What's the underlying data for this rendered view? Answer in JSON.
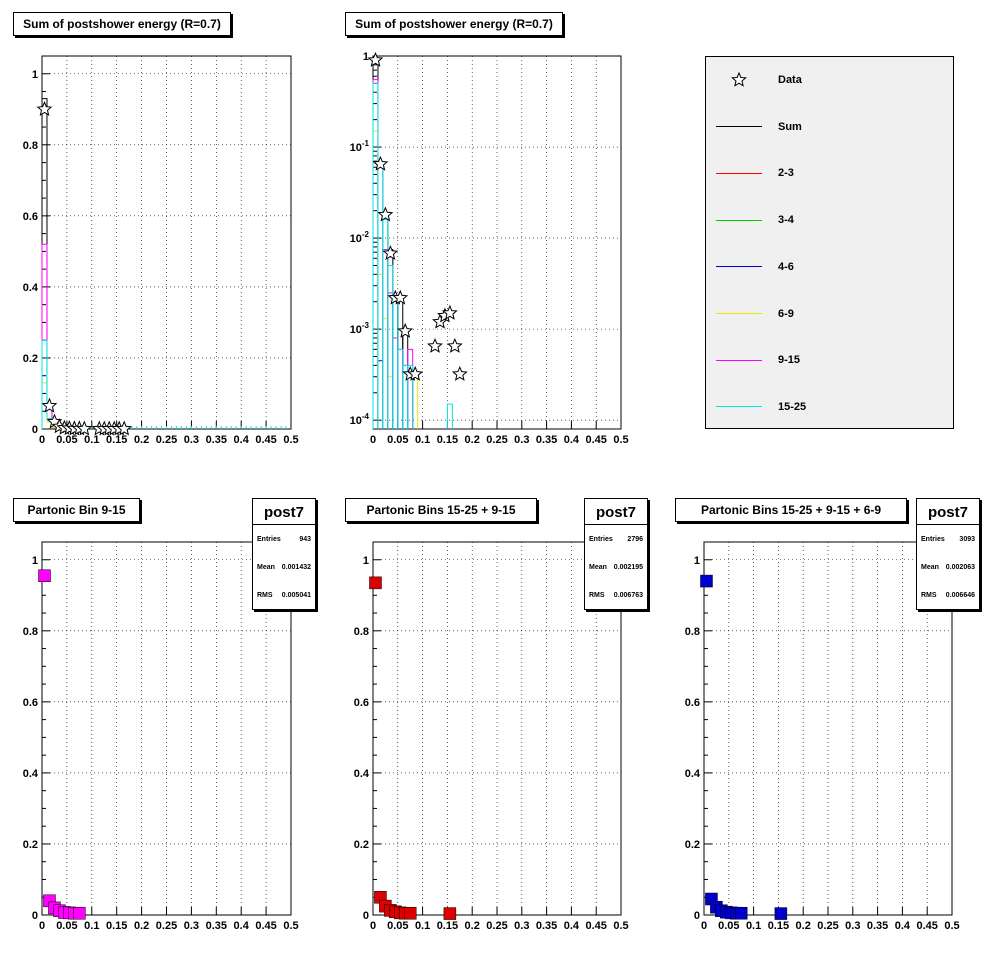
{
  "panels": [
    {
      "title": "Sum of postshower energy (R=0.7)",
      "yticks": [
        "0",
        "0.2",
        "0.4",
        "0.6",
        "0.8",
        "1"
      ],
      "xticks": [
        "0",
        "0.05",
        "0.1",
        "0.15",
        "0.2",
        "0.25",
        "0.3",
        "0.35",
        "0.4",
        "0.45",
        "0.5"
      ]
    },
    {
      "title": "Sum of postshower energy (R=0.7)",
      "yticks": [
        "10-4",
        "10-3",
        "10-2",
        "10-1",
        "1"
      ],
      "xticks": [
        "0",
        "0.05",
        "0.1",
        "0.15",
        "0.2",
        "0.25",
        "0.3",
        "0.35",
        "0.4",
        "0.45",
        "0.5"
      ]
    },
    {
      "title": "Partonic Bin 9-15",
      "yticks": [
        "0",
        "0.2",
        "0.4",
        "0.6",
        "0.8",
        "1"
      ],
      "xticks": [
        "0",
        "0.05",
        "0.1",
        "0.15",
        "0.2",
        "0.25",
        "0.3",
        "0.35",
        "0.4",
        "0.45",
        "0.5"
      ],
      "stats": {
        "name": "post7",
        "entries_label": "Entries",
        "entries": "943",
        "mean_label": "Mean",
        "mean": "0.001432",
        "rms_label": "RMS",
        "rms": "0.005041"
      }
    },
    {
      "title": "Partonic Bins 15-25 + 9-15",
      "yticks": [
        "0",
        "0.2",
        "0.4",
        "0.6",
        "0.8",
        "1"
      ],
      "xticks": [
        "0",
        "0.05",
        "0.1",
        "0.15",
        "0.2",
        "0.25",
        "0.3",
        "0.35",
        "0.4",
        "0.45",
        "0.5"
      ],
      "stats": {
        "name": "post7",
        "entries_label": "Entries",
        "entries": "2796",
        "mean_label": "Mean",
        "mean": "0.002195",
        "rms_label": "RMS",
        "rms": "0.006763"
      }
    },
    {
      "title": "Partonic Bins 15-25 + 9-15 + 6-9",
      "yticks": [
        "0",
        "0.2",
        "0.4",
        "0.6",
        "0.8",
        "1"
      ],
      "xticks": [
        "0",
        "0.05",
        "0.1",
        "0.15",
        "0.2",
        "0.25",
        "0.3",
        "0.35",
        "0.4",
        "0.45",
        "0.5"
      ],
      "stats": {
        "name": "post7",
        "entries_label": "Entries",
        "entries": "3093",
        "mean_label": "Mean",
        "mean": "0.002063",
        "rms_label": "RMS",
        "rms": "0.006646"
      }
    }
  ],
  "legend": [
    {
      "label": "Data",
      "color": "#000000",
      "marker": "star"
    },
    {
      "label": "Sum",
      "color": "#000000",
      "marker": "line"
    },
    {
      "label": "2-3",
      "color": "#ff0000",
      "marker": "line"
    },
    {
      "label": "3-4",
      "color": "#00cc00",
      "marker": "line"
    },
    {
      "label": "4-6",
      "color": "#0000cc",
      "marker": "line"
    },
    {
      "label": "6-9",
      "color": "#e6e600",
      "marker": "line"
    },
    {
      "label": "9-15",
      "color": "#ff00ff",
      "marker": "line"
    },
    {
      "label": "15-25",
      "color": "#00e5e5",
      "marker": "line"
    }
  ],
  "chart_data": [
    {
      "type": "line",
      "title": "Sum of postshower energy (R=0.7)",
      "xlim": [
        0,
        0.5
      ],
      "ylim": [
        0,
        1.05
      ],
      "grid": true,
      "x": [
        0.005,
        0.015,
        0.025,
        0.035,
        0.045,
        0.055,
        0.065,
        0.075,
        0.085
      ],
      "series": [
        {
          "name": "Data",
          "marker": "star",
          "points": [
            [
              0.005,
              0.9
            ],
            [
              0.015,
              0.065
            ],
            [
              0.025,
              0.02
            ],
            [
              0.035,
              0.007
            ],
            [
              0.045,
              0.003
            ],
            [
              0.055,
              0.002
            ],
            [
              0.065,
              0.001
            ],
            [
              0.075,
              0.001
            ],
            [
              0.085,
              0.0005
            ],
            [
              0.115,
              0.0005
            ],
            [
              0.125,
              0.0005
            ],
            [
              0.135,
              0.0005
            ],
            [
              0.145,
              0.0005
            ],
            [
              0.155,
              0.0005
            ],
            [
              0.165,
              0.0005
            ]
          ]
        },
        {
          "name": "Sum",
          "values": [
            0.93,
            0.06,
            0.017,
            0.007,
            0.002,
            0.002,
            0.0005,
            0.0003,
            0.0001
          ]
        },
        {
          "name": "6-9",
          "values": [
            0.13,
            0.02,
            0.004,
            0.001,
            0.0005,
            0,
            0,
            0,
            0
          ]
        },
        {
          "name": "9-15",
          "values": [
            0.52,
            0.06,
            0.015,
            0.005,
            0.002,
            0.0005,
            0.0005,
            0.0005,
            0
          ]
        },
        {
          "name": "15-25",
          "values": [
            0.25,
            0.03,
            0.01,
            0.005,
            0.002,
            0.002,
            0.0005,
            0.0005,
            0
          ]
        }
      ]
    },
    {
      "type": "line",
      "title": "Sum of postshower energy (R=0.7)",
      "yscale": "log",
      "xlim": [
        0,
        0.5
      ],
      "ylim": [
        8e-05,
        1
      ],
      "grid": true,
      "series": [
        {
          "name": "Data",
          "marker": "star",
          "points": [
            [
              0.005,
              0.9
            ],
            [
              0.015,
              0.065
            ],
            [
              0.025,
              0.018
            ],
            [
              0.035,
              0.0068
            ],
            [
              0.045,
              0.0022
            ],
            [
              0.055,
              0.0022
            ],
            [
              0.065,
              0.00095
            ],
            [
              0.075,
              0.00032
            ],
            [
              0.085,
              0.00032
            ],
            [
              0.125,
              0.00065
            ],
            [
              0.135,
              0.0012
            ],
            [
              0.145,
              0.0014
            ],
            [
              0.155,
              0.0015
            ],
            [
              0.165,
              0.00065
            ],
            [
              0.175,
              0.00032
            ]
          ]
        },
        {
          "name": "Sum",
          "bins": [
            [
              0,
              0.01,
              0.93
            ],
            [
              0.01,
              0.02,
              0.065
            ],
            [
              0.02,
              0.03,
              0.017
            ],
            [
              0.03,
              0.04,
              0.0075
            ],
            [
              0.04,
              0.05,
              0.0022
            ],
            [
              0.05,
              0.06,
              0.0022
            ],
            [
              0.06,
              0.07,
              0.0009
            ],
            [
              0.07,
              0.08,
              0.0003
            ]
          ]
        },
        {
          "name": "4-6",
          "bins": [
            [
              0.01,
              0.02,
              0.00045
            ]
          ]
        },
        {
          "name": "6-9",
          "bins": [
            [
              0,
              0.01,
              0.15
            ],
            [
              0.01,
              0.02,
              0.004
            ],
            [
              0.02,
              0.03,
              0.0013
            ],
            [
              0.03,
              0.04,
              0.0003
            ],
            [
              0.07,
              0.08,
              0.0003
            ],
            [
              0.08,
              0.09,
              0.0003
            ]
          ]
        },
        {
          "name": "9-15",
          "bins": [
            [
              0,
              0.01,
              0.55
            ],
            [
              0.01,
              0.02,
              0.065
            ],
            [
              0.02,
              0.03,
              0.0075
            ],
            [
              0.03,
              0.04,
              0.0025
            ],
            [
              0.04,
              0.05,
              0.0008
            ],
            [
              0.05,
              0.06,
              0.0006
            ],
            [
              0.06,
              0.07,
              0.0004
            ],
            [
              0.07,
              0.08,
              0.0006
            ]
          ]
        },
        {
          "name": "15-25",
          "bins": [
            [
              0,
              0.01,
              0.5
            ],
            [
              0.01,
              0.02,
              0.065
            ],
            [
              0.02,
              0.03,
              0.016
            ],
            [
              0.03,
              0.04,
              0.005
            ],
            [
              0.04,
              0.05,
              0.0022
            ],
            [
              0.05,
              0.06,
              0.0006
            ],
            [
              0.06,
              0.07,
              0.0004
            ],
            [
              0.07,
              0.08,
              0.0004
            ],
            [
              0.15,
              0.16,
              0.00015
            ]
          ]
        }
      ]
    },
    {
      "type": "scatter",
      "title": "Partonic Bin 9-15",
      "xlim": [
        0,
        0.5
      ],
      "ylim": [
        0,
        1.05
      ],
      "grid": true,
      "color": "#ff00ff",
      "points": [
        [
          0.005,
          0.955
        ],
        [
          0.015,
          0.04
        ],
        [
          0.025,
          0.02
        ],
        [
          0.035,
          0.012
        ],
        [
          0.045,
          0.007
        ],
        [
          0.055,
          0.006
        ],
        [
          0.065,
          0.005
        ],
        [
          0.075,
          0.005
        ]
      ]
    },
    {
      "type": "scatter",
      "title": "Partonic Bins 15-25 + 9-15",
      "xlim": [
        0,
        0.5
      ],
      "ylim": [
        0,
        1.05
      ],
      "grid": true,
      "color": "#dd0000",
      "points": [
        [
          0.005,
          0.935
        ],
        [
          0.015,
          0.05
        ],
        [
          0.025,
          0.025
        ],
        [
          0.035,
          0.013
        ],
        [
          0.045,
          0.009
        ],
        [
          0.055,
          0.006
        ],
        [
          0.065,
          0.005
        ],
        [
          0.075,
          0.005
        ],
        [
          0.155,
          0.004
        ]
      ]
    },
    {
      "type": "scatter",
      "title": "Partonic Bins 15-25 + 9-15 + 6-9",
      "xlim": [
        0,
        0.5
      ],
      "ylim": [
        0,
        1.05
      ],
      "grid": true,
      "color": "#0000cc",
      "points": [
        [
          0.005,
          0.94
        ],
        [
          0.015,
          0.045
        ],
        [
          0.025,
          0.022
        ],
        [
          0.035,
          0.012
        ],
        [
          0.045,
          0.008
        ],
        [
          0.055,
          0.006
        ],
        [
          0.065,
          0.005
        ],
        [
          0.075,
          0.005
        ],
        [
          0.155,
          0.004
        ]
      ]
    }
  ]
}
